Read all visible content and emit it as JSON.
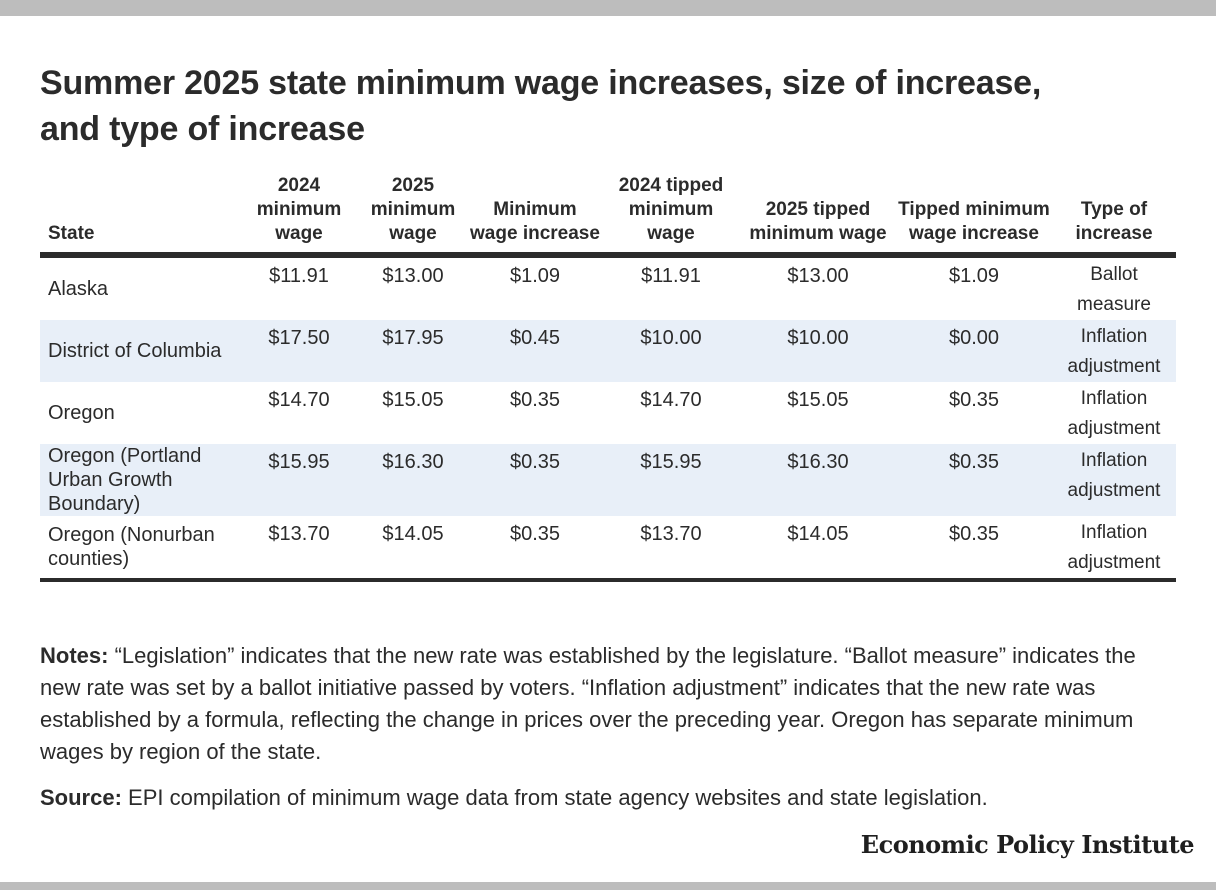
{
  "chart_data": {
    "type": "table",
    "title": "Summer 2025 state minimum wage increases, size of increase, and type of increase",
    "columns": [
      "State",
      "2024 minimum wage",
      "2025 minimum wage",
      "Minimum wage increase",
      "2024 tipped minimum wage",
      "2025 tipped minimum wage",
      "Tipped minimum wage increase",
      "Type of increase"
    ],
    "rows": [
      [
        "Alaska",
        "$11.91",
        "$13.00",
        "$1.09",
        "$11.91",
        "$13.00",
        "$1.09",
        "Ballot measure"
      ],
      [
        "District of Columbia",
        "$17.50",
        "$17.95",
        "$0.45",
        "$10.00",
        "$10.00",
        "$0.00",
        "Inflation adjustment"
      ],
      [
        "Oregon",
        "$14.70",
        "$15.05",
        "$0.35",
        "$14.70",
        "$15.05",
        "$0.35",
        "Inflation adjustment"
      ],
      [
        "Oregon (Portland Urban Growth Boundary)",
        "$15.95",
        "$16.30",
        "$0.35",
        "$15.95",
        "$16.30",
        "$0.35",
        "Inflation adjustment"
      ],
      [
        "Oregon (Nonurban counties)",
        "$13.70",
        "$14.05",
        "$0.35",
        "$13.70",
        "$14.05",
        "$0.35",
        "Inflation adjustment"
      ]
    ]
  },
  "notes": {
    "label": "Notes:",
    "text": " “Legislation” indicates that the new rate was established by the legislature. “Ballot measure” indicates the new rate was set by a ballot initiative passed by voters. “Inflation adjustment” indicates that the new rate was established by a formula, reflecting the change in prices over the preceding year. Oregon has separate minimum wages by region of the state."
  },
  "source": {
    "label": "Source:",
    "text": " EPI compilation of minimum wage data from state agency websites and state legislation."
  },
  "brand": "Economic Policy Institute",
  "colors": {
    "row_shading": "#e8eff8",
    "rule": "#2b2b2b",
    "frame_bar": "#bdbdbd"
  }
}
